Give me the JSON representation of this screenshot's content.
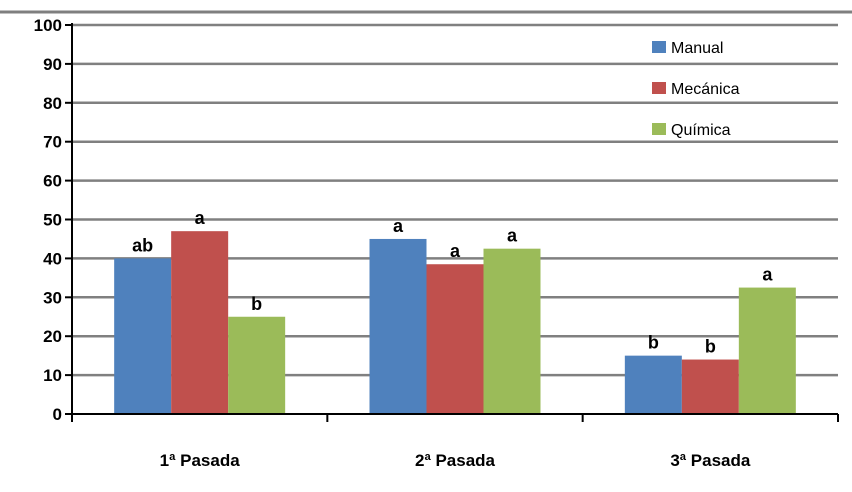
{
  "chart_data": {
    "type": "bar",
    "categories": [
      "1ª Pasada",
      "2ª Pasada",
      "3ª Pasada"
    ],
    "series": [
      {
        "name": "Manual",
        "values": [
          40,
          45,
          15
        ],
        "labels": [
          "ab",
          "a",
          "b"
        ],
        "color": "#4F81BD"
      },
      {
        "name": "Mecánica",
        "values": [
          47,
          38.5,
          14
        ],
        "labels": [
          "a",
          "a",
          "b"
        ],
        "color": "#C0504D"
      },
      {
        "name": "Química",
        "values": [
          25,
          42.5,
          32.5
        ],
        "labels": [
          "b",
          "a",
          "a"
        ],
        "color": "#9BBB59"
      }
    ],
    "ylim": [
      0,
      100
    ],
    "yticks": [
      "0",
      "10",
      "20",
      "30",
      "40",
      "50",
      "60",
      "70",
      "80",
      "90",
      "100"
    ],
    "grid": true,
    "legend": "top-right"
  }
}
